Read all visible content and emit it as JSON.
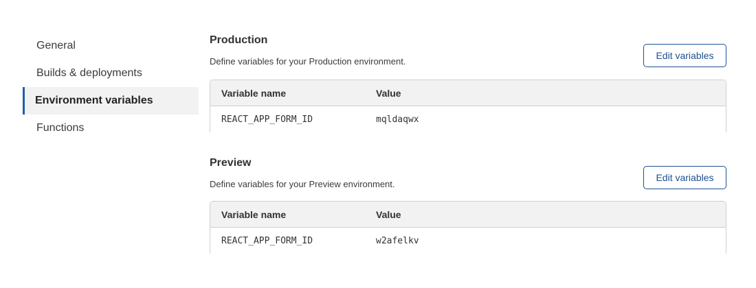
{
  "sidebar": {
    "items": [
      {
        "label": "General",
        "active": false
      },
      {
        "label": "Builds & deployments",
        "active": false
      },
      {
        "label": "Environment variables",
        "active": true
      },
      {
        "label": "Functions",
        "active": false
      }
    ]
  },
  "accent": "#1d5ea8",
  "sections": [
    {
      "title": "Production",
      "description": "Define variables for your Production environment.",
      "edit_label": "Edit variables",
      "columns": [
        "Variable name",
        "Value"
      ],
      "rows": [
        [
          "REACT_APP_FORM_ID",
          "mqldaqwx"
        ]
      ]
    },
    {
      "title": "Preview",
      "description": "Define variables for your Preview environment.",
      "edit_label": "Edit variables",
      "columns": [
        "Variable name",
        "Value"
      ],
      "rows": [
        [
          "REACT_APP_FORM_ID",
          "w2afelkv"
        ]
      ]
    }
  ]
}
